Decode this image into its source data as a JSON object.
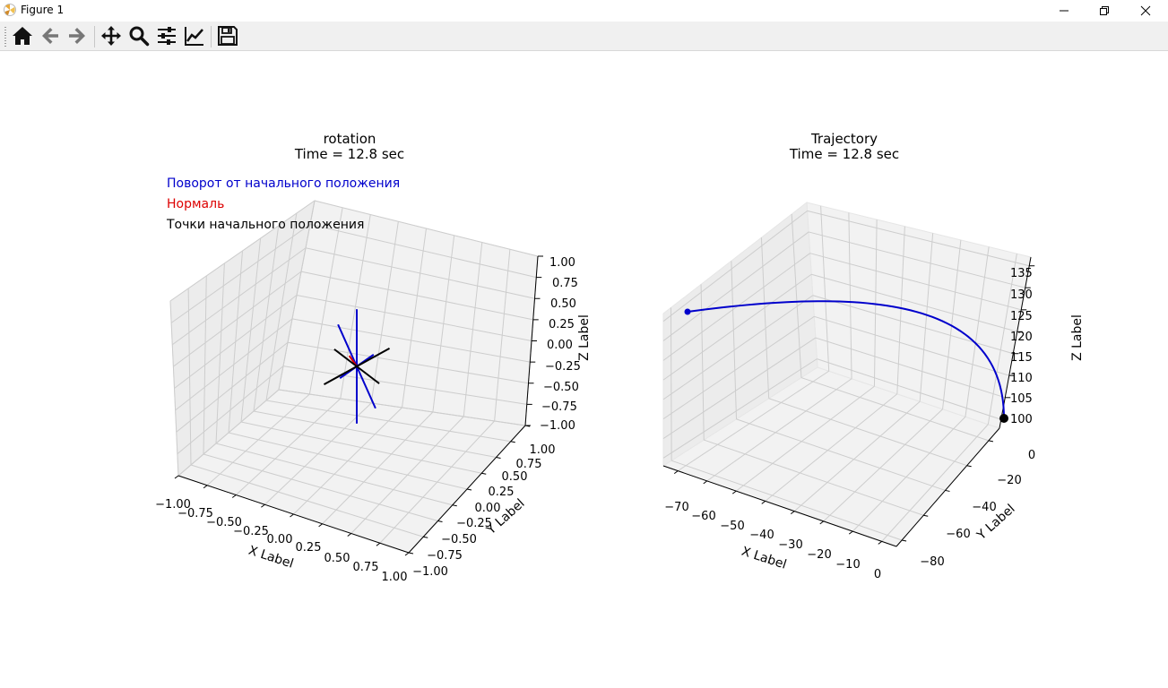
{
  "window": {
    "title": "Figure 1",
    "minimize": "minimize",
    "maximize": "restore",
    "close": "close"
  },
  "toolbar": [
    {
      "name": "home-button",
      "icon": "home-icon"
    },
    {
      "name": "back-button",
      "icon": "arrow-left-icon"
    },
    {
      "name": "forward-button",
      "icon": "arrow-right-icon"
    },
    {
      "name": "pan-button",
      "icon": "move-icon"
    },
    {
      "name": "zoom-button",
      "icon": "magnifier-icon"
    },
    {
      "name": "subplots-button",
      "icon": "sliders-icon"
    },
    {
      "name": "edit-axes-button",
      "icon": "line-chart-icon"
    },
    {
      "name": "save-button",
      "icon": "floppy-disk-icon"
    }
  ],
  "chart_data": [
    {
      "type": "line",
      "title": "rotation",
      "subtitle": "Time = 12.8 sec",
      "xlabel": "X Label",
      "ylabel": "Y Label",
      "zlabel": "Z Label",
      "xticks": [
        "−1.00",
        "−0.75",
        "−0.50",
        "−0.25",
        "0.00",
        "0.25",
        "0.50",
        "0.75",
        "1.00"
      ],
      "yticks": [
        "−1.00",
        "−0.75",
        "−0.50",
        "−0.25",
        "0.00",
        "0.25",
        "0.50",
        "0.75",
        "1.00"
      ],
      "zticks": [
        "−1.00",
        "−0.75",
        "−0.50",
        "−0.25",
        "0.00",
        "0.25",
        "0.50",
        "0.75",
        "1.00"
      ],
      "xlim": [
        -1,
        1
      ],
      "ylim": [
        -1,
        1
      ],
      "zlim": [
        -1,
        1
      ],
      "grid": true,
      "legend_texts": [
        {
          "text": "Поворот от начального положения",
          "color": "#0000cc"
        },
        {
          "text": "Нормаль",
          "color": "#dd0000"
        },
        {
          "text": "Точки начального положения",
          "color": "#000000"
        }
      ],
      "series": [
        {
          "color": "#0000cc",
          "segments": [
            {
              "from": [
                0,
                0,
                0
              ],
              "to": [
                0.27,
                -0.18,
                0.25
              ]
            },
            {
              "from": [
                0,
                0,
                0
              ],
              "to": [
                -0.27,
                0.18,
                -0.25
              ]
            },
            {
              "from": [
                0,
                0,
                0
              ],
              "to": [
                0.3,
                -0.2,
                -0.28
              ]
            },
            {
              "from": [
                0,
                0,
                0
              ],
              "to": [
                -0.3,
                0.2,
                0.28
              ]
            },
            {
              "from": [
                0,
                0,
                0
              ],
              "to": [
                0.0,
                -0.0,
                0.58
              ]
            },
            {
              "from": [
                0,
                0,
                0
              ],
              "to": [
                -0.0,
                0.0,
                -0.58
              ]
            }
          ]
        },
        {
          "color": "#dd0000",
          "segments": [
            {
              "from": [
                0,
                0,
                0
              ],
              "to": [
                -0.12,
                0.08,
                0.05
              ]
            }
          ]
        },
        {
          "color": "#000000",
          "segments": [
            {
              "from": [
                0,
                0,
                0
              ],
              "to": [
                0.36,
                -0.24,
                0.0
              ]
            },
            {
              "from": [
                0,
                0,
                0
              ],
              "to": [
                -0.36,
                0.24,
                0.0
              ]
            },
            {
              "from": [
                0,
                0,
                0
              ],
              "to": [
                0.2,
                0.38,
                0.1
              ]
            },
            {
              "from": [
                0,
                0,
                0
              ],
              "to": [
                -0.2,
                -0.38,
                -0.1
              ]
            }
          ]
        }
      ]
    },
    {
      "type": "line",
      "title": "Trajectory",
      "subtitle": "Time = 12.8 sec",
      "xlabel": "X Label",
      "ylabel": "Y Label",
      "zlabel": "Z Label",
      "xticks": [
        "−70",
        "−60",
        "−50",
        "−40",
        "−30",
        "−20",
        "−10",
        "0"
      ],
      "yticks": [
        "−80",
        "−60",
        "−40",
        "−20",
        "0"
      ],
      "zticks": [
        "100",
        "105",
        "110",
        "115",
        "120",
        "125",
        "130",
        "135"
      ],
      "xlim": [
        -75,
        5
      ],
      "ylim": [
        -90,
        5
      ],
      "zlim": [
        98,
        137
      ],
      "grid": true,
      "series": [
        {
          "color": "#0000cc",
          "x": [
            0,
            -1,
            -3,
            -6,
            -10,
            -15,
            -21,
            -28,
            -36,
            -44,
            -52,
            -60,
            -67,
            -72
          ],
          "y": [
            0,
            0,
            -1,
            -3,
            -6,
            -11,
            -18,
            -27,
            -37,
            -48,
            -58,
            -67,
            -74,
            -79
          ],
          "z": [
            100,
            111,
            119,
            124,
            127,
            128.5,
            129,
            129,
            128.5,
            128,
            127,
            126.5,
            126,
            125.5
          ]
        }
      ],
      "markers": [
        {
          "color": "#0000cc",
          "point": [
            -72,
            -79,
            125.5
          ]
        },
        {
          "color": "#000000",
          "point": [
            0,
            0,
            100
          ]
        }
      ]
    }
  ]
}
